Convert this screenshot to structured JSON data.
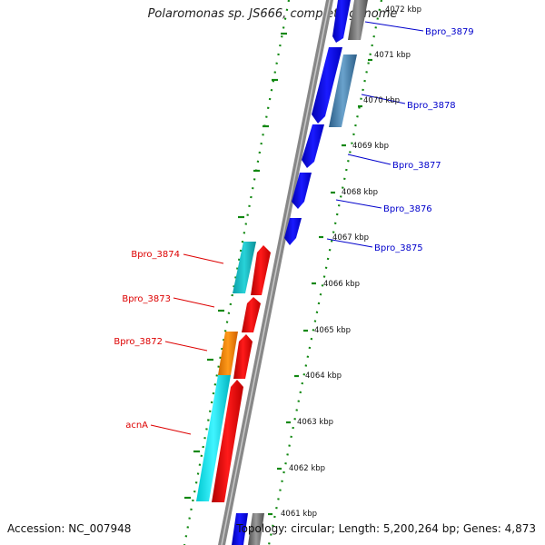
{
  "header": {
    "title": "Polaromonas sp. JS666, complete genome"
  },
  "footer": {
    "accession_label": "Accession:",
    "accession": "NC_007948",
    "topology_label": "Topology:",
    "topology": "circular;",
    "length_label": "Length:",
    "length": "5,200,264 bp;",
    "genes_label": "Genes:",
    "genes": "4,873"
  },
  "map": {
    "ticks": [
      "4072 kbp",
      "4071 kbp",
      "4070 kbp",
      "4069 kbp",
      "4068 kbp",
      "4067 kbp",
      "4066 kbp",
      "4065 kbp",
      "4064 kbp",
      "4063 kbp",
      "4062 kbp",
      "4061 kbp"
    ],
    "right_genes": [
      "Bpro_3879",
      "Bpro_3878",
      "Bpro_3877",
      "Bpro_3876",
      "Bpro_3875"
    ],
    "left_genes": [
      "Bpro_3874",
      "Bpro_3873",
      "Bpro_3872",
      "acnA"
    ],
    "colors": {
      "cds_forward": "#ff1010",
      "cds_reverse": "#1010ff",
      "gene_cyan": "#10e8f0",
      "gene_orange": "#ff8800",
      "gene_steel": "#4682b4",
      "gene_gray": "#707070",
      "backbone": "#909090",
      "dotted_track": "#118811",
      "left_label": "#dd0000",
      "right_label": "#0000cc"
    }
  }
}
